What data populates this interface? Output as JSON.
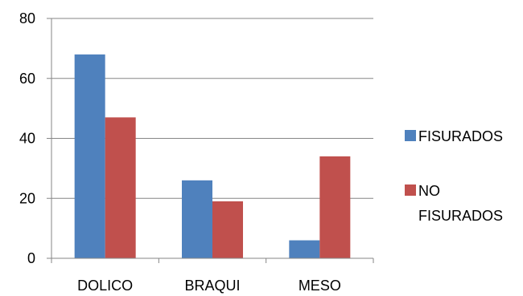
{
  "chart_data": {
    "type": "bar",
    "categories": [
      "DOLICO",
      "BRAQUI",
      "MESO"
    ],
    "series": [
      {
        "name": "FISURADOS",
        "values": [
          68,
          26,
          6
        ],
        "color": "#4F81BD"
      },
      {
        "name": "NO FISURADOS",
        "legend_lines": [
          "NO",
          "FISURADOS"
        ],
        "values": [
          47,
          19,
          34
        ],
        "color": "#C0504D"
      }
    ],
    "ylim": [
      0,
      80
    ],
    "yticks": [
      0,
      20,
      40,
      60,
      80
    ],
    "grid": true,
    "legend_position": "right"
  }
}
